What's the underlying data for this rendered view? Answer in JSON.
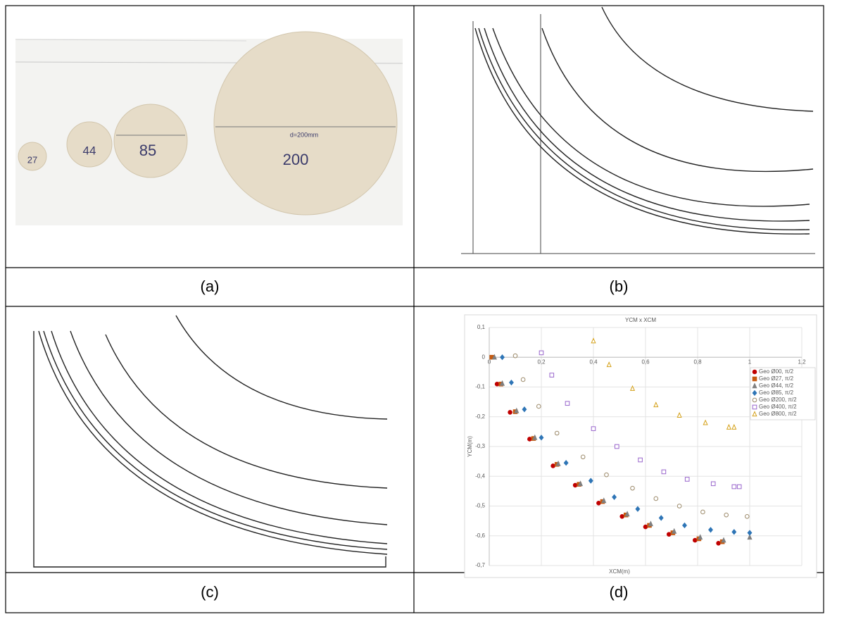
{
  "photo": {
    "labels": [
      "27",
      "44",
      "85",
      "200",
      "d=200mm"
    ]
  },
  "captions": [
    "(a)",
    "(b)",
    "(c)",
    "(d)"
  ],
  "chart_data": {
    "type": "scatter",
    "title": "YCM x XCM",
    "x_label": "XCM(m)",
    "y_label": "YCM(m)",
    "xlim": [
      0,
      1.2
    ],
    "ylim": [
      -0.7,
      0.1
    ],
    "xticks": [
      0,
      {
        "value": 0.2,
        "label": "0,2"
      },
      {
        "value": 0.4,
        "label": "0,4"
      },
      {
        "value": 0.6,
        "label": "0,6"
      },
      {
        "value": 0.8,
        "label": "0,8"
      },
      1,
      {
        "value": 1.2,
        "label": "1,2"
      }
    ],
    "yticks": [
      {
        "value": 0.1,
        "label": "0,1"
      },
      0,
      {
        "value": -0.1,
        "label": "-0,1"
      },
      {
        "value": -0.2,
        "label": "-0,2"
      },
      {
        "value": -0.3,
        "label": "-0,3"
      },
      {
        "value": -0.4,
        "label": "-0,4"
      },
      {
        "value": -0.5,
        "label": "-0,5"
      },
      {
        "value": -0.6,
        "label": "-0,6"
      },
      {
        "value": -0.7,
        "label": "-0,7"
      }
    ],
    "grid": true,
    "legend": "right",
    "series": [
      {
        "name": "Geo Ø00, π/2",
        "color": "#c00000",
        "marker": "circle",
        "filled": true,
        "x": [
          0.03,
          0.08,
          0.155,
          0.245,
          0.33,
          0.42,
          0.51,
          0.6,
          0.69,
          0.79,
          0.88
        ],
        "values": [
          -0.09,
          -0.185,
          -0.275,
          -0.365,
          -0.43,
          -0.49,
          -0.535,
          -0.57,
          -0.595,
          -0.615,
          -0.625
        ]
      },
      {
        "name": "Geo Ø27, π/2",
        "color": "#c55a11",
        "marker": "square",
        "filled": true,
        "x": [
          0.01,
          0.045,
          0.1,
          0.17,
          0.26,
          0.345,
          0.435,
          0.525,
          0.615,
          0.705,
          0.805,
          0.895
        ],
        "values": [
          0,
          -0.09,
          -0.183,
          -0.273,
          -0.36,
          -0.427,
          -0.485,
          -0.53,
          -0.565,
          -0.59,
          -0.61,
          -0.62
        ]
      },
      {
        "name": "Geo Ø44, π/2",
        "color": "#7f7f7f",
        "marker": "triangle",
        "filled": true,
        "x": [
          0.02,
          0.05,
          0.105,
          0.175,
          0.265,
          0.35,
          0.44,
          0.53,
          0.62,
          0.71,
          0.81,
          0.9,
          1.0
        ],
        "values": [
          0,
          -0.088,
          -0.18,
          -0.27,
          -0.358,
          -0.425,
          -0.482,
          -0.527,
          -0.56,
          -0.585,
          -0.605,
          -0.615,
          -0.605
        ]
      },
      {
        "name": "Geo Ø85, π/2",
        "color": "#2e75b6",
        "marker": "diamond",
        "filled": true,
        "x": [
          0.05,
          0.085,
          0.135,
          0.2,
          0.295,
          0.39,
          0.48,
          0.57,
          0.66,
          0.75,
          0.85,
          0.94,
          1.0
        ],
        "values": [
          0,
          -0.085,
          -0.175,
          -0.27,
          -0.355,
          -0.415,
          -0.47,
          -0.51,
          -0.54,
          -0.565,
          -0.58,
          -0.587,
          -0.59
        ]
      },
      {
        "name": "Geo Ø200, π/2",
        "color": "#9c8a6a",
        "marker": "circle",
        "filled": false,
        "x": [
          0.1,
          0.13,
          0.19,
          0.26,
          0.36,
          0.45,
          0.55,
          0.64,
          0.73,
          0.82,
          0.91,
          0.99
        ],
        "values": [
          0.005,
          -0.075,
          -0.165,
          -0.255,
          -0.335,
          -0.395,
          -0.44,
          -0.475,
          -0.5,
          -0.52,
          -0.53,
          -0.535
        ]
      },
      {
        "name": "Geo Ø400, π/2",
        "color": "#9966cc",
        "marker": "square",
        "filled": false,
        "x": [
          0.2,
          0.24,
          0.3,
          0.4,
          0.49,
          0.58,
          0.67,
          0.76,
          0.86,
          0.94,
          0.96
        ],
        "values": [
          0.015,
          -0.06,
          -0.155,
          -0.24,
          -0.3,
          -0.345,
          -0.385,
          -0.41,
          -0.425,
          -0.435,
          -0.435
        ]
      },
      {
        "name": "Geo Ø800, π/2",
        "color": "#d4a017",
        "marker": "triangle",
        "filled": false,
        "x": [
          0.4,
          0.46,
          0.55,
          0.64,
          0.73,
          0.83,
          0.92,
          0.94
        ],
        "values": [
          0.055,
          -0.025,
          -0.105,
          -0.16,
          -0.195,
          -0.22,
          -0.235,
          -0.235
        ]
      }
    ]
  }
}
